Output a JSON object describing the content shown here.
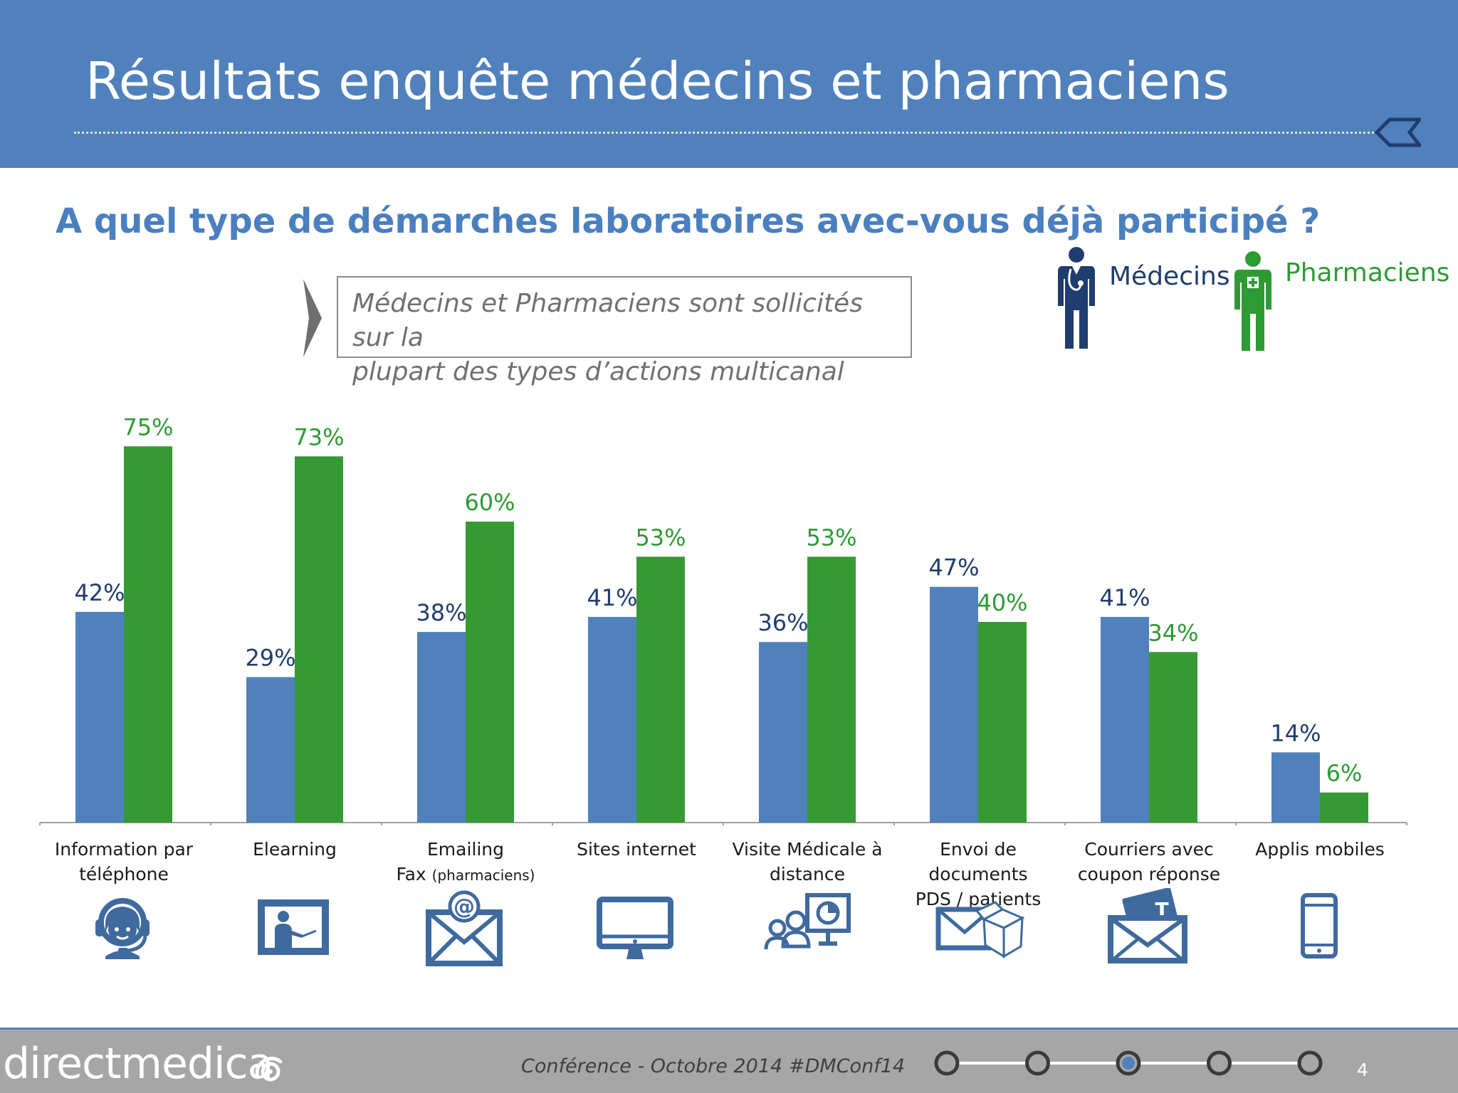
{
  "header": {
    "title": "Résultats enquête médecins et pharmaciens"
  },
  "question": "A quel type de démarches laboratoires avec-vous déjà participé ?",
  "callout": {
    "line1": "Médecins et Pharmaciens sont sollicités sur la",
    "line2": "plupart des types d’actions multicanal"
  },
  "legend": {
    "medecins": "Médecins",
    "pharmaciens": "Pharmaciens"
  },
  "colors": {
    "header_bg": "#5081bd",
    "medecins": "#5081bd",
    "medecins_label": "#1f3d6e",
    "pharmaciens": "#359a34",
    "pharmaciens_label": "#2e9a34",
    "icon": "#3f6a9e"
  },
  "chart_data": {
    "type": "bar",
    "categories": [
      "Information par téléphone",
      "Elearning",
      "Emailing Fax (pharmaciens)",
      "Sites internet",
      "Visite Médicale à distance",
      "Envoi de documents PDS / patients",
      "Courriers avec coupon réponse",
      "Applis mobiles"
    ],
    "series": [
      {
        "name": "Médecins",
        "values": [
          42,
          29,
          38,
          41,
          36,
          47,
          41,
          14
        ]
      },
      {
        "name": "Pharmaciens",
        "values": [
          75,
          73,
          60,
          53,
          53,
          40,
          34,
          6
        ]
      }
    ],
    "value_labels": {
      "Médecins": [
        "42%",
        "29%",
        "38%",
        "41%",
        "36%",
        "47%",
        "41%",
        "14%"
      ],
      "Pharmaciens": [
        "75%",
        "73%",
        "60%",
        "53%",
        "53%",
        "40%",
        "34%",
        "6%"
      ]
    },
    "ylim": [
      0,
      100
    ],
    "grid": false,
    "legend_position": "top-right"
  },
  "category_labels": [
    {
      "text": "Information par\ntéléphone",
      "icon": "headset-agent-icon"
    },
    {
      "text": "Elearning",
      "icon": "elearning-board-icon"
    },
    {
      "text": "Emailing\nFax ",
      "note": "(pharmaciens)",
      "icon": "email-at-icon"
    },
    {
      "text": "Sites internet",
      "icon": "monitor-icon"
    },
    {
      "text": "Visite Médicale à\ndistance",
      "icon": "video-conference-icon"
    },
    {
      "text": "Envoi de documents\nPDS / patients",
      "icon": "envelope-box-icon"
    },
    {
      "text": "Courriers avec\ncoupon réponse",
      "icon": "envelope-coupon-icon"
    },
    {
      "text": "Applis mobiles",
      "icon": "mobile-phone-icon"
    }
  ],
  "footer": {
    "brand": "directmedica",
    "conference": "Conférence - Octobre 2014",
    "hashtag": "#DMConf14",
    "page": "4",
    "progress_steps": 5,
    "progress_active": 3
  }
}
